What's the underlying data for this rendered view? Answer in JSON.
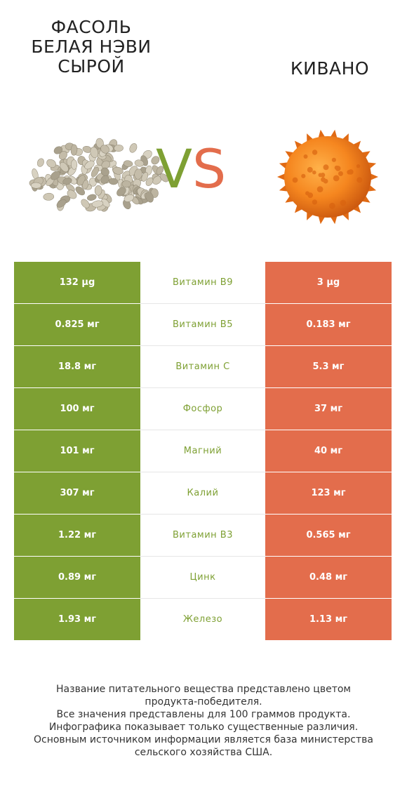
{
  "left_product": {
    "title_lines": [
      "ФАСОЛЬ",
      "БЕЛАЯ НЭВИ",
      "СЫРОЙ"
    ],
    "color": "#7ea033"
  },
  "right_product": {
    "title": "КИВАНО",
    "color": "#e36d4c"
  },
  "vs": {
    "v": "V",
    "s": "S"
  },
  "rows": [
    {
      "left": "132 µg",
      "nutrient": "Витамин B9",
      "right": "3 µg"
    },
    {
      "left": "0.825 мг",
      "nutrient": "Витамин B5",
      "right": "0.183 мг"
    },
    {
      "left": "18.8 мг",
      "nutrient": "Витамин C",
      "right": "5.3 мг"
    },
    {
      "left": "100 мг",
      "nutrient": "Фосфор",
      "right": "37 мг"
    },
    {
      "left": "101 мг",
      "nutrient": "Магний",
      "right": "40 мг"
    },
    {
      "left": "307 мг",
      "nutrient": "Калий",
      "right": "123 мг"
    },
    {
      "left": "1.22 мг",
      "nutrient": "Витамин B3",
      "right": "0.565 мг"
    },
    {
      "left": "0.89 мг",
      "nutrient": "Цинк",
      "right": "0.48 мг"
    },
    {
      "left": "1.93 мг",
      "nutrient": "Железо",
      "right": "1.13 мг"
    }
  ],
  "footer_lines": [
    "Название питательного вещества представлено цветом",
    "продукта-победителя.",
    "Все значения представлены для 100 граммов продукта.",
    "Инфографика показывает только существенные различия.",
    "Основным источником информации является база министерства",
    "сельского хозяйства США."
  ]
}
